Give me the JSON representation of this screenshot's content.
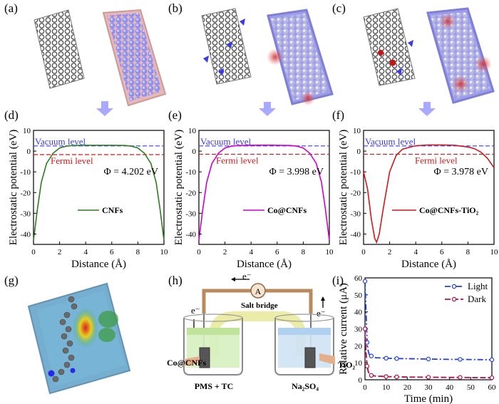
{
  "panel_labels": [
    "(a)",
    "(b)",
    "(c)",
    "(d)",
    "(e)",
    "(f)",
    "(g)",
    "(h)",
    "(i)"
  ],
  "colors": {
    "cnfs_curve": "#2e7d1e",
    "co_cnfs_curve": "#d000d0",
    "co_cnfs_tio2_curve": "#d01818",
    "vacuum_line": "#3a3aff",
    "fermi_line": "#d01818",
    "arrow": "#a9a9ff",
    "light_series": "#2040e0",
    "dark_series": "#b0104a"
  },
  "panels_top": {
    "d": {
      "vacuum_label": "Vacuum level",
      "fermi_label": "Fermi level",
      "phi_text": "Φ = 4.202 eV",
      "legend": "CNFs"
    },
    "e": {
      "vacuum_label": "Vacuum level",
      "fermi_label": "Fermi level",
      "phi_text": "Φ = 3.998 eV",
      "legend": "Co@CNFs"
    },
    "f": {
      "vacuum_label": "Vacuum level",
      "fermi_label": "Fermi level",
      "phi_text": "Φ = 3.978 eV",
      "legend": "Co@CNFs-TiO₂"
    }
  },
  "axes_common": {
    "ylabel": "Electrostatic potential (eV)",
    "xlabel": "Distance (Å)",
    "x_ticks": [
      "0",
      "2",
      "4",
      "6",
      "8",
      "10"
    ],
    "y_ticks": [
      "10",
      "0",
      "-10",
      "-20",
      "-30",
      "-40"
    ]
  },
  "diagram_h": {
    "electron_top": "e⁻",
    "ammeter": "A",
    "electron_left": "e⁻",
    "electron_right": "e⁻",
    "salt_bridge": "Salt bridge",
    "left_electrode_label": "Co@CNFs",
    "right_electrode_label": "TiO₂",
    "left_solution": "PMS + TC",
    "right_solution": "Na₂SO₄"
  },
  "chart_data": [
    {
      "type": "line",
      "panel": "(d)",
      "title": "",
      "xlabel": "Distance (Å)",
      "ylabel": "Electrostatic potential (eV)",
      "xlim": [
        0,
        10
      ],
      "ylim": [
        -45,
        10
      ],
      "vacuum_level": 2.5,
      "fermi_level": -1.7,
      "series": [
        {
          "name": "CNFs",
          "x": [
            0,
            0.3,
            0.6,
            1.0,
            1.5,
            2.0,
            2.5,
            3.0,
            4.0,
            5.0,
            6.0,
            7.0,
            7.5,
            8.0,
            8.5,
            9.0,
            9.4,
            9.7,
            10.0
          ],
          "y": [
            -43,
            -28,
            -15,
            -6,
            -1,
            1.5,
            2.4,
            2.7,
            2.8,
            2.8,
            2.8,
            2.7,
            2.4,
            1.5,
            -1,
            -6,
            -15,
            -28,
            -43
          ]
        }
      ]
    },
    {
      "type": "line",
      "panel": "(e)",
      "title": "",
      "xlabel": "Distance (Å)",
      "ylabel": "Electrostatic potential (eV)",
      "xlim": [
        0,
        10
      ],
      "ylim": [
        -45,
        10
      ],
      "vacuum_level": 2.5,
      "fermi_level": -1.5,
      "series": [
        {
          "name": "Co@CNFs",
          "x": [
            0,
            0.3,
            0.6,
            1.0,
            1.5,
            2.0,
            2.5,
            3.0,
            4.0,
            5.0,
            6.0,
            7.0,
            7.5,
            8.0,
            8.5,
            9.0,
            9.4,
            9.7,
            10.0
          ],
          "y": [
            -43,
            -28,
            -15,
            -6,
            -1,
            1.5,
            2.4,
            2.7,
            2.8,
            2.9,
            2.8,
            2.7,
            2.4,
            1.5,
            -1,
            -6,
            -15,
            -28,
            -43
          ]
        }
      ]
    },
    {
      "type": "line",
      "panel": "(f)",
      "title": "",
      "xlabel": "Distance (Å)",
      "ylabel": "Electrostatic potential (eV)",
      "xlim": [
        0,
        10
      ],
      "ylim": [
        -45,
        10
      ],
      "vacuum_level": 2.5,
      "fermi_level": -1.5,
      "series": [
        {
          "name": "Co@CNFs-TiO₂",
          "x": [
            0,
            0.3,
            0.6,
            0.85,
            1.0,
            1.2,
            1.5,
            2.0,
            2.5,
            3.0,
            4.0,
            5.0,
            6.0,
            7.0,
            8.0,
            8.5,
            9.0,
            9.5,
            10.0
          ],
          "y": [
            -10,
            -18,
            -33,
            -42,
            -44,
            -40,
            -28,
            -10,
            -2,
            1,
            2.6,
            3.0,
            3.0,
            2.8,
            2.0,
            1.2,
            -0.5,
            -3.5,
            -8
          ]
        }
      ]
    },
    {
      "type": "line",
      "panel": "(i)",
      "title": "",
      "xlabel": "Time (min)",
      "ylabel": "Relative current (μA)",
      "xlim": [
        0,
        60
      ],
      "ylim": [
        0,
        60
      ],
      "x_ticks": [
        "0",
        "10",
        "20",
        "30",
        "40",
        "50",
        "60"
      ],
      "y_ticks": [
        "0",
        "10",
        "20",
        "30",
        "40",
        "50",
        "60"
      ],
      "legend": [
        "Light",
        "Dark"
      ],
      "series": [
        {
          "name": "Light",
          "x": [
            0,
            0.5,
            1,
            1.5,
            2,
            3,
            5,
            8,
            10,
            15,
            20,
            30,
            40,
            45,
            50,
            60
          ],
          "y": [
            58,
            40,
            22,
            17,
            15,
            14,
            13,
            12.8,
            12.7,
            12.5,
            12.4,
            12.2,
            12.0,
            12.0,
            11.9,
            11.8
          ]
        },
        {
          "name": "Dark",
          "x": [
            0,
            0.5,
            1,
            1.5,
            2,
            3,
            5,
            8,
            10,
            15,
            20,
            30,
            40,
            45,
            50,
            60
          ],
          "y": [
            30,
            16,
            8,
            5,
            3.5,
            2.6,
            2.2,
            2.0,
            1.9,
            1.7,
            1.6,
            1.5,
            1.4,
            1.4,
            1.3,
            1.2
          ]
        }
      ]
    }
  ]
}
